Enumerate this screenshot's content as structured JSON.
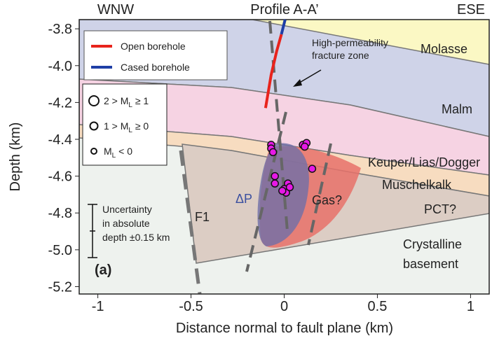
{
  "chart_data": {
    "type": "scatter",
    "title": "Profile A-A’",
    "xlabel": "Distance normal to fault plane (km)",
    "ylabel": "Depth (km)",
    "xlim": [
      -1.1,
      1.1
    ],
    "xticks": [
      -1,
      -0.5,
      0,
      0.5,
      1
    ],
    "ylim": [
      -5.24,
      -3.75
    ],
    "yticks": [
      -3.8,
      {
        "value": -4,
        "label": "-4.0"
      },
      -4.2,
      -4.4,
      -4.6,
      -4.8,
      {
        "value": -5,
        "label": "-5.0"
      },
      -5.2
    ],
    "series": [
      {
        "name": "Open borehole",
        "color": "#e8231c",
        "x": [
          -0.1,
          -0.07,
          -0.04,
          -0.015
        ],
        "y": [
          -4.23,
          -4.05,
          -3.92,
          -3.83
        ]
      },
      {
        "name": "Cased borehole",
        "color": "#1f3fa6",
        "x": [
          -0.015,
          0.005
        ],
        "y": [
          -3.83,
          -3.75
        ]
      }
    ],
    "events": {
      "color": "#e619e6",
      "x": [
        -0.07,
        -0.07,
        -0.06,
        0.1,
        0.12,
        0.11,
        0.15,
        -0.05,
        -0.05,
        0.02,
        0,
        0.01,
        -0.01,
        0.03
      ],
      "y": [
        -4.43,
        -4.45,
        -4.47,
        -4.43,
        -4.42,
        -4.44,
        -4.56,
        -4.6,
        -4.64,
        -4.64,
        -4.67,
        -4.69,
        -4.68,
        -4.66
      ]
    },
    "magnitude_legend": [
      {
        "pre": "2 > M",
        "sub": "L",
        "post": " ≥ 1"
      },
      {
        "pre": "1 > M",
        "sub": "L",
        "post": " ≥ 0"
      },
      {
        "pre": "M",
        "sub": "L",
        "post": " < 0"
      }
    ],
    "annotations": {
      "left": "WNW",
      "right": "ESE",
      "molasse": "Molasse",
      "malm": "Malm",
      "keuper": "Keuper/Lias/Dogger",
      "muschelkalk": "Muschelkalk",
      "pct": "PCT?",
      "crystalline": [
        "Crystalline",
        "basement"
      ],
      "gas": "Gas?",
      "dp": "ΔP",
      "f1": "F1",
      "panel": "(a)",
      "fracture": [
        "High-permeability",
        "fracture zone"
      ],
      "uncertainty": [
        "Uncertainty",
        "in absolute",
        "depth ±0.15 km"
      ]
    }
  }
}
